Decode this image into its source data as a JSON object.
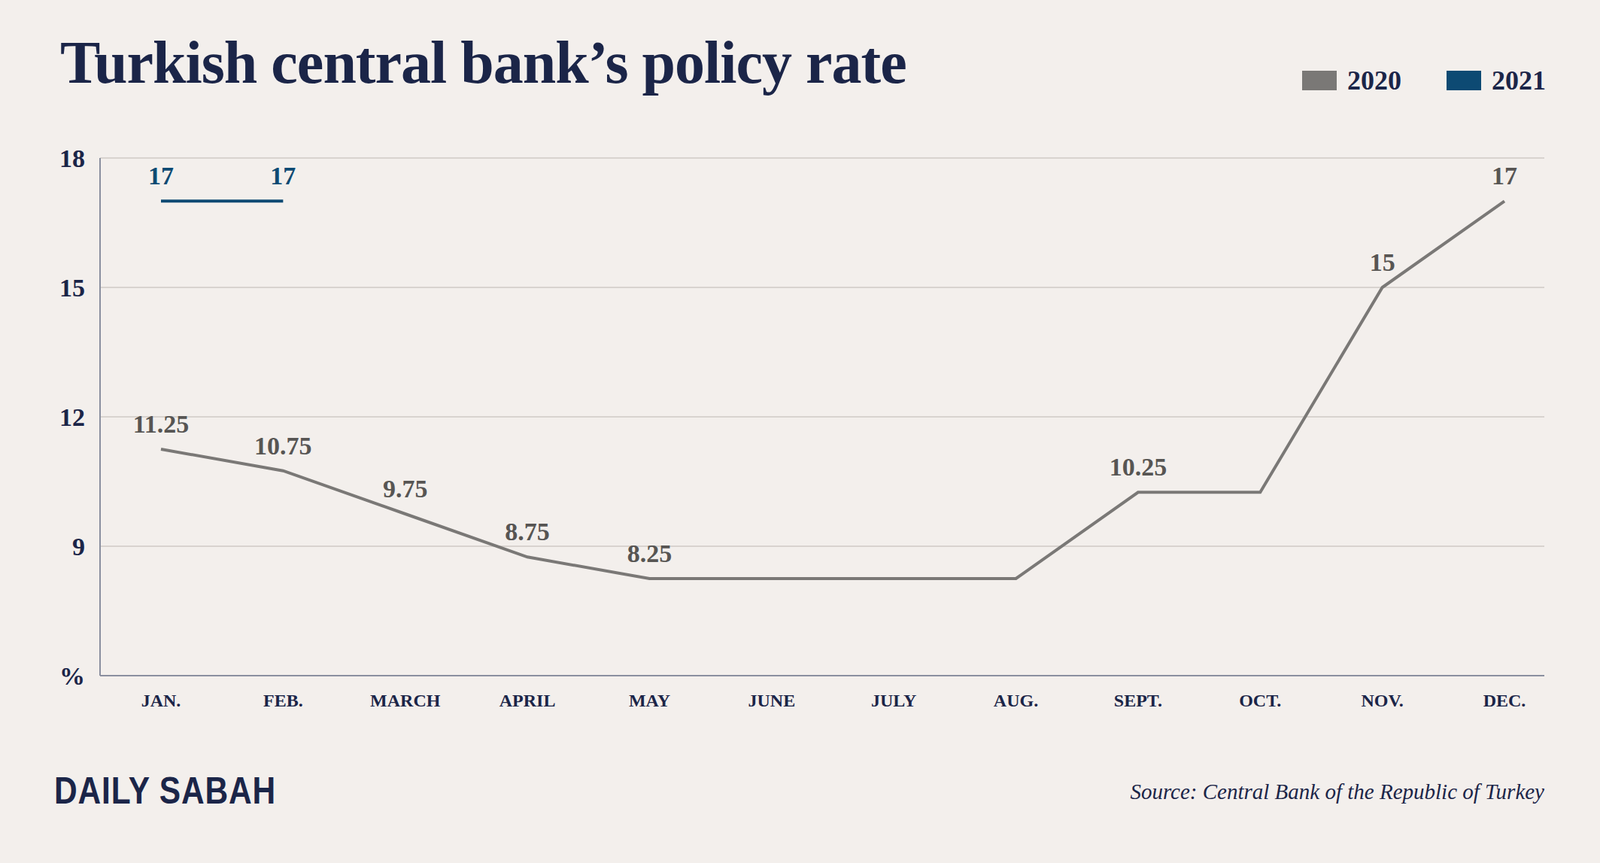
{
  "chart_data": {
    "type": "line",
    "title": "Turkish central bank’s policy rate",
    "source": "Source: Central Bank of the Republic of Turkey",
    "brand": "DAILY SABAH",
    "categories": [
      "JAN.",
      "FEB.",
      "MARCH",
      "APRIL",
      "MAY",
      "JUNE",
      "JULY",
      "AUG.",
      "SEPT.",
      "OCT.",
      "NOV.",
      "DEC."
    ],
    "series": [
      {
        "name": "2020",
        "color": "#7a7876",
        "values": [
          11.25,
          10.75,
          9.75,
          8.75,
          8.25,
          8.25,
          8.25,
          8.25,
          10.25,
          10.25,
          15,
          17
        ],
        "value_labels": [
          "11.25",
          "10.75",
          "9.75",
          "8.75",
          "8.25",
          null,
          null,
          null,
          "10.25",
          null,
          "15",
          "17"
        ]
      },
      {
        "name": "2021",
        "color": "#0d4a73",
        "values": [
          17,
          17,
          null,
          null,
          null,
          null,
          null,
          null,
          null,
          null,
          null,
          null
        ],
        "value_labels": [
          "17",
          "17",
          null,
          null,
          null,
          null,
          null,
          null,
          null,
          null,
          null,
          null
        ]
      }
    ],
    "ylim": [
      6,
      18
    ],
    "yticks": [
      {
        "value": 6,
        "label": "%"
      },
      9,
      12,
      15,
      18
    ],
    "grid": true,
    "legend": "upper right",
    "data_labels": true,
    "line_style": "solid",
    "marker": "none"
  }
}
